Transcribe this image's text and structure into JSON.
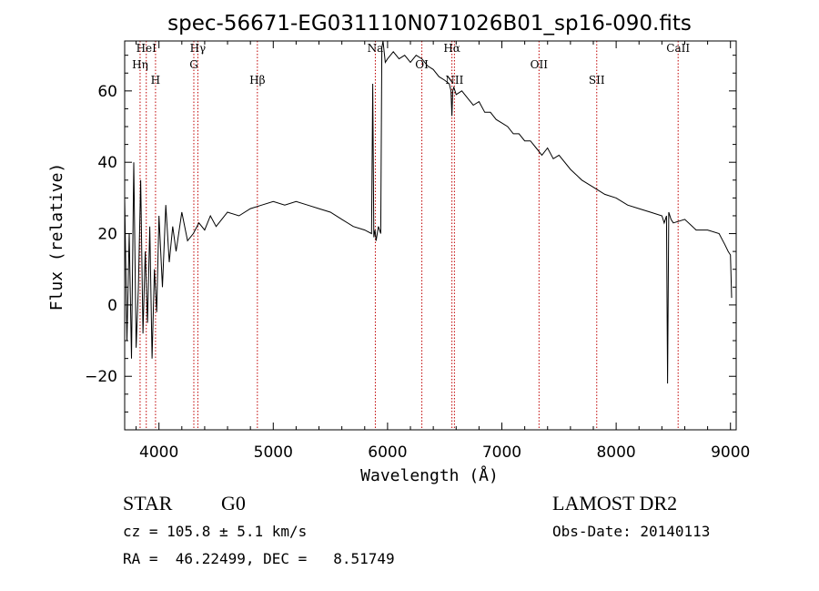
{
  "chart_data": {
    "type": "line",
    "title": "spec-56671-EG031110N071026B01_sp16-090.fits",
    "xlabel": "Wavelength (Å)",
    "ylabel": "Flux (relative)",
    "xlim": [
      3700,
      9050
    ],
    "ylim": [
      -35,
      74
    ],
    "xticks": [
      4000,
      5000,
      6000,
      7000,
      8000,
      9000
    ],
    "yticks": [
      -20,
      0,
      20,
      40,
      60
    ],
    "grid": false,
    "legend": "none",
    "series": [
      {
        "x": [
          3700,
          3720,
          3740,
          3760,
          3780,
          3800,
          3820,
          3840,
          3860,
          3880,
          3900,
          3920,
          3940,
          3960,
          3980,
          4000,
          4030,
          4060,
          4090,
          4120,
          4150,
          4200,
          4250,
          4300,
          4350,
          4400,
          4450,
          4500,
          4600,
          4700,
          4800,
          4900,
          5000,
          5100,
          5200,
          5300,
          5400,
          5500,
          5600,
          5700,
          5800,
          5860,
          5870,
          5880,
          5890,
          5900,
          5920,
          5940,
          5950,
          5960,
          5980,
          6000,
          6050,
          6100,
          6150,
          6200,
          6250,
          6300,
          6350,
          6400,
          6450,
          6500,
          6540,
          6555,
          6563,
          6570,
          6580,
          6600,
          6650,
          6700,
          6750,
          6800,
          6850,
          6900,
          6950,
          7000,
          7050,
          7100,
          7150,
          7200,
          7250,
          7300,
          7350,
          7400,
          7450,
          7500,
          7600,
          7700,
          7800,
          7900,
          8000,
          8100,
          8200,
          8300,
          8400,
          8420,
          8440,
          8450,
          8460,
          8480,
          8500,
          8600,
          8700,
          8800,
          8900,
          8950,
          8980,
          9000,
          9010
        ],
        "y": [
          30,
          -10,
          20,
          -15,
          40,
          -12,
          5,
          35,
          -8,
          15,
          -5,
          22,
          -15,
          10,
          -2,
          25,
          5,
          28,
          12,
          22,
          15,
          26,
          18,
          20,
          23,
          21,
          25,
          22,
          26,
          25,
          27,
          28,
          29,
          28,
          29,
          28,
          27,
          26,
          24,
          22,
          21,
          20,
          62,
          19,
          21,
          18,
          22,
          20,
          72,
          74,
          68,
          69,
          71,
          69,
          70,
          68,
          70,
          69,
          67,
          66,
          64,
          63,
          62,
          60,
          53,
          60,
          61,
          59,
          60,
          58,
          56,
          57,
          54,
          54,
          52,
          51,
          50,
          48,
          48,
          46,
          46,
          44,
          42,
          44,
          41,
          42,
          38,
          35,
          33,
          31,
          30,
          28,
          27,
          26,
          25,
          23,
          25,
          -22,
          26,
          24,
          23,
          24,
          21,
          21,
          20,
          17,
          15,
          14,
          2
        ]
      }
    ],
    "lines": [
      {
        "label": "HeI",
        "x": 3889
      },
      {
        "label": "Hη",
        "x": 3835
      },
      {
        "label": "H",
        "x": 3970
      },
      {
        "label": "Hγ",
        "x": 4340
      },
      {
        "label": "G",
        "x": 4305
      },
      {
        "label": "Hβ",
        "x": 4861
      },
      {
        "label": "Na",
        "x": 5893
      },
      {
        "label": "OI",
        "x": 6300
      },
      {
        "label": "NII",
        "x": 6585
      },
      {
        "label": "Hα",
        "x": 6563
      },
      {
        "label": "OII",
        "x": 7325
      },
      {
        "label": "SII",
        "x": 7830
      },
      {
        "label": "CaII",
        "x": 8542
      }
    ]
  },
  "info": {
    "class": "STAR",
    "subclass": "G0",
    "survey": "LAMOST DR2",
    "cz": "cz = 105.8 ± 5.1 km/s",
    "obs_date": "Obs-Date: 20140113",
    "coords": "RA =  46.22499, DEC =   8.51749"
  },
  "colors": {
    "spectrum": "#000000",
    "line_marker": "#c00000"
  }
}
